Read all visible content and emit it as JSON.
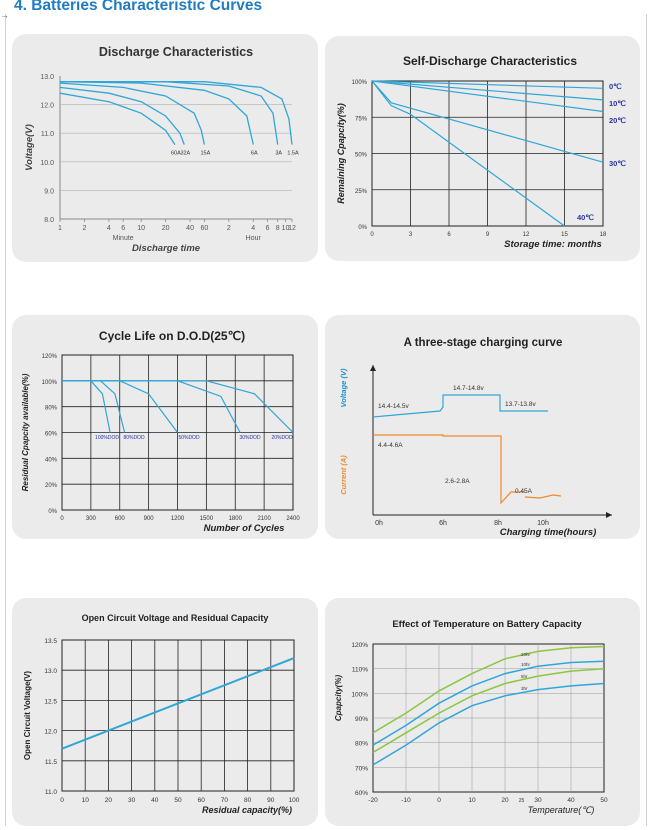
{
  "header": {
    "arrow": "→",
    "title": "4.  Batteries Characteristic Curves"
  },
  "colors": {
    "curve": "#2fa6d8",
    "orange": "#ef8a2a",
    "green": "#8cc63f",
    "blue_dark": "#1a8fd6",
    "axis": "#222222",
    "title_blue": "#1f7bc4"
  },
  "chart_data": [
    {
      "id": "discharge",
      "type": "line",
      "title": "Discharge Characteristics",
      "ylabel": "Voltage(V)",
      "xlabel": "Discharge time",
      "x_unit_labels": [
        "Minute",
        "Hour"
      ],
      "x_ticks": [
        "1",
        "2",
        "4",
        "6",
        "10",
        "20",
        "40",
        "60",
        "2",
        "4",
        "6",
        "8",
        "10",
        "12"
      ],
      "y_ticks": [
        "13.0",
        "12.0",
        "11.0",
        "10.0",
        "9.0",
        "8.0"
      ],
      "ylim": [
        8,
        13
      ],
      "series": [
        {
          "name": "60A",
          "points": [
            [
              1,
              12.4
            ],
            [
              4,
              12.1
            ],
            [
              10,
              11.7
            ],
            [
              20,
              11.1
            ],
            [
              26,
              10.6
            ]
          ]
        },
        {
          "name": "32A",
          "points": [
            [
              1,
              12.6
            ],
            [
              4,
              12.4
            ],
            [
              10,
              12.1
            ],
            [
              20,
              11.6
            ],
            [
              30,
              11.0
            ],
            [
              34,
              10.6
            ]
          ]
        },
        {
          "name": "15A",
          "points": [
            [
              1,
              12.75
            ],
            [
              6,
              12.6
            ],
            [
              20,
              12.3
            ],
            [
              45,
              11.7
            ],
            [
              55,
              11.1
            ],
            [
              60,
              10.6
            ]
          ]
        },
        {
          "name": "6A",
          "points": [
            [
              1,
              12.8
            ],
            [
              10,
              12.75
            ],
            [
              60,
              12.5
            ],
            [
              120,
              12.2
            ],
            [
              200,
              11.6
            ],
            [
              240,
              10.6
            ]
          ]
        },
        {
          "name": "3A",
          "points": [
            [
              1,
              12.8
            ],
            [
              20,
              12.8
            ],
            [
              120,
              12.65
            ],
            [
              300,
              12.3
            ],
            [
              420,
              11.7
            ],
            [
              480,
              10.6
            ]
          ]
        },
        {
          "name": "1.5A",
          "points": [
            [
              1,
              12.8
            ],
            [
              60,
              12.8
            ],
            [
              300,
              12.6
            ],
            [
              540,
              12.2
            ],
            [
              660,
              11.5
            ],
            [
              720,
              10.6
            ]
          ]
        }
      ]
    },
    {
      "id": "self_discharge",
      "type": "line",
      "title": "Self-Discharge Characteristics",
      "ylabel": "Remaining Cpapcity(%)",
      "xlabel": "Storage time: months",
      "x_ticks": [
        "0",
        "3",
        "6",
        "9",
        "12",
        "15",
        "18"
      ],
      "y_ticks": [
        "100%",
        "75%",
        "50%",
        "25%",
        "0%"
      ],
      "xlim": [
        0,
        18
      ],
      "ylim": [
        0,
        100
      ],
      "series": [
        {
          "name": "0℃",
          "points": [
            [
              0,
              100
            ],
            [
              18,
              95
            ]
          ]
        },
        {
          "name": "10℃",
          "points": [
            [
              0,
              100
            ],
            [
              18,
              87
            ]
          ]
        },
        {
          "name": "20℃",
          "points": [
            [
              0,
              100
            ],
            [
              18,
              79
            ]
          ]
        },
        {
          "name": "30℃",
          "points": [
            [
              0,
              100
            ],
            [
              1.5,
              85
            ],
            [
              18,
              44
            ]
          ]
        },
        {
          "name": "40℃",
          "points": [
            [
              0,
              100
            ],
            [
              1.5,
              83
            ],
            [
              3,
              77
            ],
            [
              15,
              0
            ]
          ]
        }
      ]
    },
    {
      "id": "cycle_life",
      "type": "line",
      "title": "Cycle Life on D.O.D(25℃)",
      "ylabel": "Residual Cpapcity available(%)",
      "xlabel": "Number of Cycles",
      "x_ticks": [
        "0",
        "300",
        "600",
        "900",
        "1200",
        "1500",
        "1800",
        "2100",
        "2400"
      ],
      "y_ticks": [
        "120%",
        "100%",
        "80%",
        "60%",
        "40%",
        "20%",
        "0%"
      ],
      "xlim": [
        0,
        2400
      ],
      "ylim": [
        0,
        120
      ],
      "series": [
        {
          "name": "100%DOD",
          "points": [
            [
              0,
              100
            ],
            [
              300,
              100
            ],
            [
              420,
              90
            ],
            [
              500,
              60
            ]
          ]
        },
        {
          "name": "80%DOD",
          "points": [
            [
              0,
              100
            ],
            [
              400,
              100
            ],
            [
              550,
              90
            ],
            [
              650,
              60
            ]
          ]
        },
        {
          "name": "50%DOD",
          "points": [
            [
              0,
              100
            ],
            [
              600,
              100
            ],
            [
              900,
              90
            ],
            [
              1200,
              60
            ]
          ]
        },
        {
          "name": "30%DOD",
          "points": [
            [
              0,
              100
            ],
            [
              1200,
              100
            ],
            [
              1650,
              88
            ],
            [
              1850,
              60
            ]
          ]
        },
        {
          "name": "20%DOD",
          "points": [
            [
              0,
              100
            ],
            [
              1500,
              100
            ],
            [
              2000,
              90
            ],
            [
              2400,
              60
            ]
          ]
        }
      ]
    },
    {
      "id": "three_stage",
      "type": "line",
      "title": "A three-stage charging curve",
      "ylabel_current": "Current (A)",
      "ylabel_voltage": "Voltage (V)",
      "xlabel": "Charging time(hours)",
      "x_ticks": [
        "0h",
        "6h",
        "8h",
        "10h"
      ],
      "annotations": [
        "14.4-14.5v",
        "14.7-14.8v",
        "13.7-13.8v",
        "4.4-4.6A",
        "2.6-2.8A",
        "0.45A"
      ]
    },
    {
      "id": "ocv",
      "type": "line",
      "title": "Open Circuit Voltage and Residual Capacity",
      "ylabel": "Open Circuit Voltage(V)",
      "xlabel": "Residual capacity(%)",
      "x_ticks": [
        "0",
        "10",
        "20",
        "30",
        "40",
        "50",
        "60",
        "70",
        "80",
        "90",
        "100"
      ],
      "y_ticks": [
        "13.5",
        "13.0",
        "12.5",
        "12.0",
        "11.5",
        "11.0"
      ],
      "xlim": [
        0,
        100
      ],
      "ylim": [
        11.0,
        13.5
      ],
      "series": [
        {
          "name": "",
          "points": [
            [
              0,
              11.7
            ],
            [
              100,
              13.2
            ]
          ]
        }
      ]
    },
    {
      "id": "temperature",
      "type": "line",
      "title": "Effect of Temperature on Battery Capacity",
      "ylabel": "Cpapcity(%)",
      "xlabel": "Temperature(℃)",
      "x_ticks": [
        "-20",
        "-10",
        "0",
        "10",
        "20",
        "25",
        "30",
        "40",
        "50"
      ],
      "y_ticks": [
        "120%",
        "110%",
        "100%",
        "90%",
        "80%",
        "70%",
        "60%"
      ],
      "xlim": [
        -20,
        50
      ],
      "ylim": [
        60,
        120
      ],
      "series": [
        {
          "name": "20hr",
          "points": [
            [
              -20,
              84
            ],
            [
              -10,
              92
            ],
            [
              0,
              101
            ],
            [
              10,
              108
            ],
            [
              20,
              114
            ],
            [
              30,
              117
            ],
            [
              40,
              118.5
            ],
            [
              50,
              119
            ]
          ]
        },
        {
          "name": "10hr",
          "points": [
            [
              -20,
              79
            ],
            [
              -10,
              87
            ],
            [
              0,
              96
            ],
            [
              10,
              103
            ],
            [
              20,
              108
            ],
            [
              30,
              111
            ],
            [
              40,
              112.5
            ],
            [
              50,
              113
            ]
          ]
        },
        {
          "name": "5hr",
          "points": [
            [
              -20,
              76
            ],
            [
              -10,
              84
            ],
            [
              0,
              92
            ],
            [
              10,
              99
            ],
            [
              20,
              104
            ],
            [
              30,
              107
            ],
            [
              40,
              109
            ],
            [
              50,
              110
            ]
          ]
        },
        {
          "name": "3hr",
          "points": [
            [
              -20,
              71
            ],
            [
              -10,
              79
            ],
            [
              0,
              88
            ],
            [
              10,
              95
            ],
            [
              20,
              99
            ],
            [
              30,
              101.5
            ],
            [
              40,
              103
            ],
            [
              50,
              104
            ]
          ]
        }
      ]
    }
  ]
}
